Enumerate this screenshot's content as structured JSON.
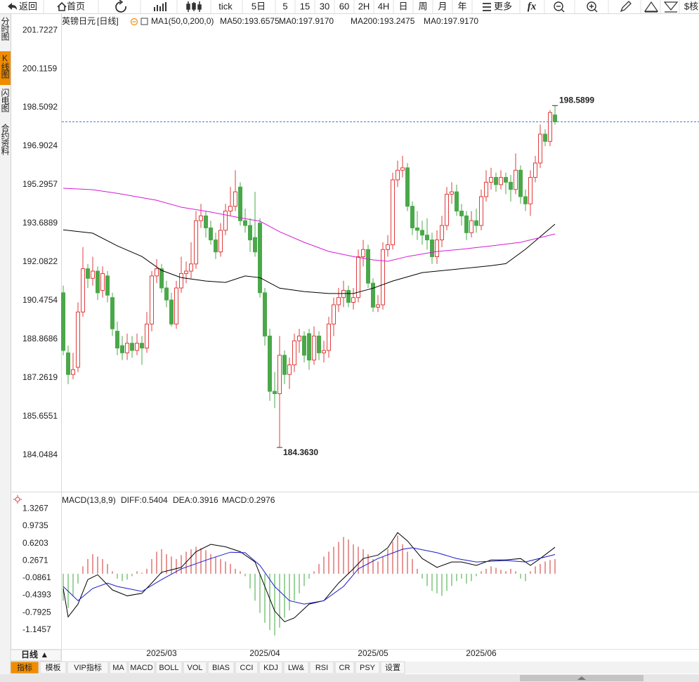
{
  "toolbar": {
    "items": [
      "返回",
      "首页",
      "tick",
      "5日",
      "5",
      "15",
      "30",
      "60",
      "2H",
      "4H",
      "日",
      "周",
      "月",
      "年",
      "更多",
      "fx",
      "$核"
    ]
  },
  "sidebar": {
    "tabs": [
      "分时图",
      "K线图",
      "闪电图",
      "合约资料"
    ],
    "active": 1
  },
  "chart_data": [
    {
      "type": "candlestick",
      "legend": [
        {
          "text": "英镑日元",
          "color": "#000000"
        },
        {
          "text": "[日线]",
          "color": "#f08c00"
        },
        {
          "text": "MA1(50,0,200,0)",
          "color": "#000000"
        },
        {
          "text": "MA50:193.6575",
          "color": "#000000"
        },
        {
          "text": "MA0:197.9170",
          "color": "#1a1acc"
        },
        {
          "text": "MA200:193.2475",
          "color": "#d61ad6"
        },
        {
          "text": "MA0:197.9170",
          "color": "#f08c00"
        }
      ],
      "up_color": "#e03c3c",
      "down_color": "#4aa84a",
      "xlim": [
        0,
        100
      ],
      "xticks": [
        {
          "value": 20,
          "label": "2025/03"
        },
        {
          "value": 41,
          "label": "2025/04"
        },
        {
          "value": 63,
          "label": "2025/05"
        },
        {
          "value": 85,
          "label": "2025/06"
        }
      ],
      "ylim": [
        182.67,
        202.34
      ],
      "yticks": [
        201.7227,
        200.1159,
        198.5092,
        196.9024,
        195.2957,
        193.6889,
        192.0822,
        190.4754,
        188.8686,
        187.2619,
        185.6551,
        184.0484
      ],
      "high_label": "198.5899",
      "low_label": "184.3630",
      "candles": [
        [
          190.8,
          191.1,
          188.2,
          188.4
        ],
        [
          188.3,
          188.6,
          187.0,
          187.4
        ],
        [
          187.4,
          188.3,
          187.2,
          187.6
        ],
        [
          187.7,
          190.4,
          187.5,
          190.0
        ],
        [
          190.0,
          192.7,
          189.8,
          191.8
        ],
        [
          191.8,
          192.0,
          191.0,
          191.4
        ],
        [
          191.4,
          192.3,
          191.1,
          191.7
        ],
        [
          191.7,
          191.9,
          190.5,
          190.8
        ],
        [
          190.9,
          191.9,
          190.6,
          191.6
        ],
        [
          191.5,
          191.7,
          190.4,
          190.7
        ],
        [
          190.6,
          190.8,
          189.0,
          189.3
        ],
        [
          189.2,
          189.6,
          188.2,
          188.5
        ],
        [
          188.6,
          189.0,
          188.0,
          188.3
        ],
        [
          188.3,
          189.1,
          188.0,
          188.7
        ],
        [
          188.7,
          189.0,
          188.1,
          188.4
        ],
        [
          188.4,
          189.1,
          188.2,
          188.7
        ],
        [
          188.7,
          189.0,
          187.8,
          188.5
        ],
        [
          188.5,
          190.0,
          188.3,
          189.5
        ],
        [
          189.5,
          191.7,
          189.2,
          191.5
        ],
        [
          191.5,
          192.2,
          191.2,
          191.8
        ],
        [
          191.8,
          192.0,
          190.8,
          191.0
        ],
        [
          191.0,
          191.3,
          190.2,
          190.5
        ],
        [
          190.5,
          190.8,
          189.4,
          189.5
        ],
        [
          189.5,
          191.3,
          189.3,
          191.0
        ],
        [
          191.0,
          192.3,
          190.8,
          191.6
        ],
        [
          191.6,
          192.1,
          191.2,
          191.7
        ],
        [
          191.7,
          192.9,
          191.4,
          192.0
        ],
        [
          192.0,
          194.2,
          191.8,
          193.8
        ],
        [
          193.8,
          194.5,
          193.5,
          194.0
        ],
        [
          194.0,
          194.2,
          193.1,
          193.5
        ],
        [
          193.5,
          193.8,
          192.8,
          193.0
        ],
        [
          193.0,
          193.3,
          192.2,
          192.5
        ],
        [
          192.5,
          193.7,
          192.3,
          193.4
        ],
        [
          193.4,
          194.5,
          193.2,
          194.2
        ],
        [
          194.2,
          195.2,
          194.0,
          194.4
        ],
        [
          194.4,
          195.9,
          194.2,
          195.0
        ],
        [
          195.2,
          195.4,
          193.6,
          193.8
        ],
        [
          193.8,
          194.3,
          193.3,
          193.6
        ],
        [
          193.6,
          193.9,
          192.5,
          193.0
        ],
        [
          193.1,
          195.0,
          192.3,
          192.5
        ],
        [
          193.7,
          193.9,
          190.6,
          190.8
        ],
        [
          190.8,
          191.0,
          188.6,
          189.0
        ],
        [
          189.0,
          189.3,
          186.3,
          186.7
        ],
        [
          186.7,
          187.5,
          186.0,
          186.6
        ],
        [
          186.6,
          189.0,
          184.363,
          188.2
        ],
        [
          188.2,
          188.4,
          187.0,
          187.4
        ],
        [
          187.4,
          188.1,
          186.8,
          187.8
        ],
        [
          187.8,
          189.1,
          187.5,
          188.8
        ],
        [
          188.8,
          189.3,
          188.3,
          189.0
        ],
        [
          189.0,
          189.2,
          187.9,
          188.2
        ],
        [
          189.1,
          189.3,
          187.6,
          188.0
        ],
        [
          188.0,
          189.4,
          187.8,
          189.0
        ],
        [
          189.0,
          189.2,
          188.0,
          188.3
        ],
        [
          188.3,
          188.8,
          187.9,
          188.4
        ],
        [
          188.4,
          189.8,
          188.1,
          189.5
        ],
        [
          189.5,
          190.6,
          189.0,
          190.3
        ],
        [
          190.3,
          191.0,
          190.0,
          190.6
        ],
        [
          190.6,
          191.3,
          190.2,
          190.9
        ],
        [
          190.9,
          191.1,
          190.2,
          190.4
        ],
        [
          190.4,
          191.0,
          190.1,
          190.6
        ],
        [
          190.6,
          192.6,
          190.4,
          192.3
        ],
        [
          192.3,
          193.0,
          191.9,
          192.6
        ],
        [
          192.6,
          192.8,
          191.0,
          191.2
        ],
        [
          191.2,
          191.4,
          190.0,
          190.2
        ],
        [
          190.2,
          190.7,
          190.0,
          190.3
        ],
        [
          190.3,
          192.9,
          190.1,
          192.6
        ],
        [
          192.6,
          193.2,
          192.3,
          192.8
        ],
        [
          192.8,
          195.8,
          192.6,
          195.5
        ],
        [
          195.5,
          196.3,
          195.2,
          195.9
        ],
        [
          195.9,
          196.5,
          195.6,
          196.0
        ],
        [
          196.0,
          196.2,
          194.2,
          194.4
        ],
        [
          194.4,
          194.6,
          193.2,
          193.5
        ],
        [
          193.5,
          194.2,
          193.0,
          193.4
        ],
        [
          193.4,
          193.8,
          192.8,
          193.2
        ],
        [
          193.2,
          193.9,
          192.6,
          193.0
        ],
        [
          193.0,
          193.3,
          192.0,
          192.3
        ],
        [
          192.3,
          193.4,
          192.0,
          193.0
        ],
        [
          193.0,
          194.0,
          192.7,
          193.6
        ],
        [
          193.6,
          195.2,
          193.4,
          194.9
        ],
        [
          194.9,
          195.4,
          194.5,
          195.0
        ],
        [
          195.0,
          195.3,
          194.0,
          194.2
        ],
        [
          194.2,
          194.5,
          193.6,
          194.0
        ],
        [
          194.0,
          194.2,
          193.0,
          193.3
        ],
        [
          193.3,
          194.2,
          193.1,
          193.8
        ],
        [
          193.8,
          194.3,
          193.3,
          193.6
        ],
        [
          193.6,
          195.1,
          193.4,
          194.8
        ],
        [
          194.8,
          195.9,
          194.6,
          195.4
        ],
        [
          195.4,
          196.0,
          195.1,
          195.6
        ],
        [
          195.6,
          195.8,
          195.0,
          195.3
        ],
        [
          195.3,
          195.9,
          195.1,
          195.6
        ],
        [
          195.6,
          195.8,
          194.9,
          195.4
        ],
        [
          195.4,
          195.7,
          194.6,
          195.1
        ],
        [
          195.1,
          196.6,
          194.9,
          195.9
        ],
        [
          195.9,
          196.1,
          194.5,
          194.8
        ],
        [
          194.8,
          195.1,
          194.2,
          194.5
        ],
        [
          194.5,
          195.9,
          194.0,
          195.6
        ],
        [
          195.6,
          196.5,
          195.4,
          196.2
        ],
        [
          196.2,
          197.8,
          196.0,
          197.4
        ],
        [
          197.4,
          197.6,
          196.9,
          197.1
        ],
        [
          197.1,
          198.4,
          196.9,
          198.3
        ],
        [
          198.2,
          198.5899,
          197.8,
          197.917
        ]
      ],
      "series": [
        {
          "color": "#000000",
          "x": [
            0,
            6,
            11,
            16,
            20,
            24,
            29,
            33,
            37,
            40,
            44,
            49,
            54,
            59,
            63,
            67,
            73,
            80,
            87,
            90,
            94,
            100
          ],
          "values": [
            193.42,
            193.28,
            192.75,
            192.31,
            191.73,
            191.43,
            191.29,
            191.23,
            191.5,
            191.43,
            190.99,
            190.85,
            190.77,
            190.77,
            190.99,
            191.29,
            191.64,
            191.78,
            191.93,
            192.01,
            192.61,
            193.6575
          ]
        },
        {
          "color": "#d61ad6",
          "x": [
            0,
            6,
            11,
            19,
            24,
            30,
            36,
            40,
            44,
            49,
            54,
            59,
            63,
            66,
            70,
            76,
            81,
            87,
            93,
            100
          ],
          "values": [
            195.15,
            195.09,
            194.94,
            194.65,
            194.36,
            194.16,
            193.92,
            193.78,
            193.34,
            192.9,
            192.52,
            192.31,
            192.17,
            192.11,
            192.31,
            192.52,
            192.61,
            192.75,
            192.9,
            193.2475
          ]
        }
      ]
    },
    {
      "type": "macd",
      "legend": [
        {
          "text": "MACD(13,8,9)",
          "color": "#000000"
        },
        {
          "text": "DIFF:0.5404",
          "color": "#000000"
        },
        {
          "text": "DEA:0.3916",
          "color": "#1a1acc"
        },
        {
          "text": "MACD:0.2976",
          "color": "#d61ad6"
        }
      ],
      "up_color": "#d9534f",
      "down_color": "#5cb85c",
      "ylim": [
        -1.55,
        1.46
      ],
      "yticks": [
        1.3267,
        0.9735,
        0.6203,
        0.2671,
        -0.0861,
        -0.4393,
        -0.7925,
        -1.1457
      ],
      "histogram": [
        -0.55,
        -0.7,
        -0.45,
        -0.2,
        0.15,
        0.3,
        0.4,
        0.35,
        0.3,
        0.2,
        0.05,
        -0.1,
        -0.15,
        -0.12,
        -0.05,
        0.05,
        0.02,
        0.1,
        0.3,
        0.45,
        0.5,
        0.4,
        0.35,
        0.3,
        0.38,
        0.45,
        0.5,
        0.55,
        0.52,
        0.48,
        0.4,
        0.35,
        0.3,
        0.25,
        0.2,
        0.1,
        0.05,
        -0.05,
        -0.3,
        -0.55,
        -0.8,
        -1.0,
        -1.15,
        -1.26,
        -1.1,
        -0.9,
        -0.75,
        -0.55,
        -0.4,
        -0.25,
        -0.1,
        0.05,
        0.2,
        0.35,
        0.45,
        0.55,
        0.65,
        0.75,
        0.7,
        0.6,
        0.55,
        0.5,
        0.4,
        0.3,
        0.25,
        0.35,
        0.5,
        0.65,
        0.78,
        0.6,
        0.45,
        0.3,
        0.1,
        -0.1,
        -0.25,
        -0.35,
        -0.4,
        -0.45,
        -0.35,
        -0.25,
        -0.15,
        -0.1,
        -0.2,
        -0.15,
        -0.05,
        0.05,
        0.1,
        0.15,
        0.12,
        0.08,
        0.05,
        0.1,
        0.05,
        -0.1,
        -0.15,
        0.05,
        0.15,
        0.2,
        0.25,
        0.28,
        0.2976
      ],
      "series": [
        {
          "color": "#000000",
          "x": [
            0,
            1,
            3,
            5,
            7,
            10,
            13,
            16,
            18,
            20,
            24,
            27,
            30,
            33,
            36,
            39,
            41,
            43,
            45,
            47,
            50,
            53,
            56,
            59,
            61,
            64,
            66,
            68,
            70,
            73,
            76,
            79,
            81,
            84,
            87,
            90,
            93,
            95,
            97,
            100
          ],
          "values": [
            -0.3,
            -0.88,
            -0.62,
            -0.12,
            -0.02,
            -0.33,
            -0.45,
            -0.4,
            -0.19,
            0.03,
            0.13,
            0.45,
            0.6,
            0.55,
            0.45,
            0.24,
            -0.26,
            -0.76,
            -0.98,
            -0.9,
            -0.62,
            -0.55,
            -0.19,
            0.1,
            0.31,
            0.38,
            0.53,
            0.84,
            0.67,
            0.31,
            0.13,
            0.24,
            0.24,
            0.17,
            0.28,
            0.28,
            0.31,
            0.17,
            0.31,
            0.5404
          ]
        },
        {
          "color": "#1a1acc",
          "x": [
            0,
            3,
            6,
            9,
            11,
            16,
            20,
            24,
            30,
            34,
            37,
            40,
            43,
            46,
            49,
            53,
            57,
            60,
            64,
            69,
            71,
            76,
            80,
            84,
            90,
            94,
            100
          ],
          "values": [
            -0.26,
            -0.55,
            -0.3,
            -0.19,
            -0.26,
            -0.36,
            -0.12,
            0.1,
            0.31,
            0.44,
            0.43,
            0.17,
            -0.26,
            -0.55,
            -0.62,
            -0.55,
            -0.26,
            0.1,
            0.31,
            0.5,
            0.53,
            0.43,
            0.31,
            0.24,
            0.27,
            0.24,
            0.3916
          ]
        }
      ]
    }
  ],
  "footer": {
    "period": "日线 ▲",
    "tabs": [
      "指标",
      "模板",
      "VIP指标",
      "MA",
      "MACD",
      "BOLL",
      "VOL",
      "BIAS",
      "CCI",
      "KDJ",
      "LW&",
      "RSI",
      "CR",
      "PSY",
      "设置"
    ],
    "active": 0
  }
}
